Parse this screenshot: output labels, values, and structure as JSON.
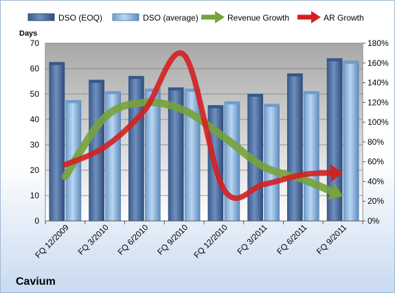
{
  "chart_data": {
    "type": "bar",
    "company": "Cavium",
    "ylabel": "Days",
    "categories": [
      "FQ 12/2009",
      "FQ 3/2010",
      "FQ 6/2010",
      "FQ 9/2010",
      "FQ 12/2010",
      "FQ 3/2011",
      "FQ 6/2011",
      "FQ 9/2011"
    ],
    "ylim": [
      0,
      70
    ],
    "y2lim": [
      0,
      180
    ],
    "yticks": [
      "0",
      "10",
      "20",
      "30",
      "40",
      "50",
      "60",
      "70"
    ],
    "y2ticks": [
      "0%",
      "20%",
      "40%",
      "60%",
      "80%",
      "100%",
      "120%",
      "140%",
      "160%",
      "180%"
    ],
    "series": [
      {
        "name": "DSO (EOQ)",
        "type": "bar",
        "axis": "left",
        "values": [
          62.5,
          55.5,
          57,
          52.5,
          45.5,
          50,
          58,
          64
        ]
      },
      {
        "name": "DSO (average)",
        "type": "bar",
        "axis": "left",
        "values": [
          47.5,
          51,
          52,
          52,
          47,
          46,
          51,
          63
        ]
      },
      {
        "name": "Revenue Growth",
        "type": "line",
        "axis": "right",
        "values": [
          45,
          105,
          120,
          112,
          85,
          55,
          42,
          25
        ]
      },
      {
        "name": "AR Growth",
        "type": "line",
        "axis": "right",
        "values": [
          57,
          75,
          112,
          168,
          32,
          37,
          47,
          49
        ]
      }
    ],
    "colors": {
      "dso_eoq": "#4f6f9f",
      "dso_avg": "#8fb6df",
      "revenue_growth": "#77a23c",
      "ar_growth": "#d42020"
    },
    "legend_position": "top",
    "grid": true
  }
}
